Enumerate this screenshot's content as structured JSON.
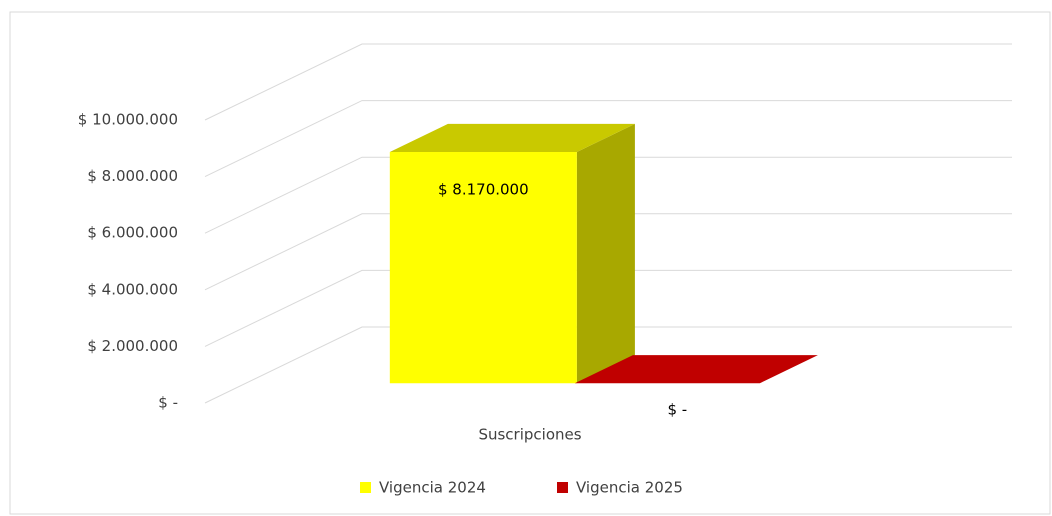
{
  "chart_data": {
    "type": "bar3d",
    "categories": [
      "Suscripciones"
    ],
    "series": [
      {
        "name": "Vigencia 2024",
        "color": "#ffff00",
        "values": [
          8170000
        ],
        "value_labels": [
          "$ 8.170.000"
        ]
      },
      {
        "name": "Vigencia 2025",
        "color": "#c00000",
        "values": [
          0
        ],
        "value_labels": [
          "$ -"
        ]
      }
    ],
    "ylim": [
      0,
      10000000
    ],
    "yticks": [
      {
        "value": 0,
        "label": "$ -"
      },
      {
        "value": 2000000,
        "label": "$ 2.000.000"
      },
      {
        "value": 4000000,
        "label": "$ 4.000.000"
      },
      {
        "value": 6000000,
        "label": "$ 6.000.000"
      },
      {
        "value": 8000000,
        "label": "$ 8.000.000"
      },
      {
        "value": 10000000,
        "label": "$ 10.000.000"
      }
    ],
    "grid": true,
    "legend": "bottom"
  }
}
